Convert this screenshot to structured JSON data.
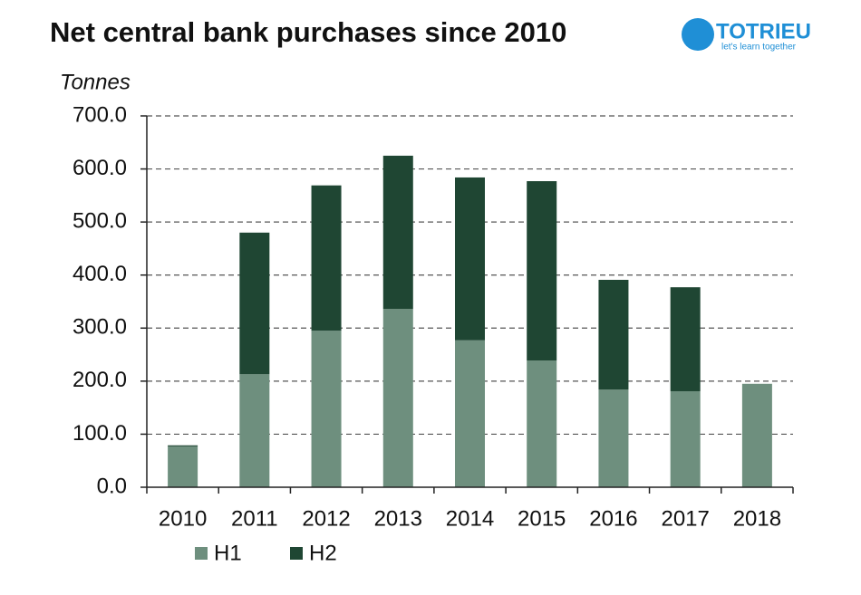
{
  "chart_data": {
    "type": "stacked-bar",
    "title": "Net central bank purchases since 2010",
    "y_label": "Tonnes",
    "watermark": {
      "name": "TOTRIEU",
      "tagline": "let's learn together"
    },
    "categories": [
      "2010",
      "2011",
      "2012",
      "2013",
      "2014",
      "2015",
      "2016",
      "2017",
      "2018"
    ],
    "series": [
      {
        "name": "H1",
        "color": "#6e8f7e",
        "values": [
          77,
          213,
          295,
          336,
          277,
          239,
          184,
          181,
          195
        ]
      },
      {
        "name": "H2",
        "color": "#1f4633",
        "values": [
          2,
          267,
          274,
          289,
          307,
          338,
          207,
          196,
          null
        ]
      }
    ],
    "ylim": [
      0,
      700
    ],
    "yticks": [
      {
        "value": 0,
        "label": "0.0"
      },
      {
        "value": 100,
        "label": "100.0"
      },
      {
        "value": 200,
        "label": "200.0"
      },
      {
        "value": 300,
        "label": "300.0"
      },
      {
        "value": 400,
        "label": "400.0"
      },
      {
        "value": 500,
        "label": "500.0"
      },
      {
        "value": 600,
        "label": "600.0"
      },
      {
        "value": 700,
        "label": "700.0"
      }
    ],
    "grid": true
  }
}
